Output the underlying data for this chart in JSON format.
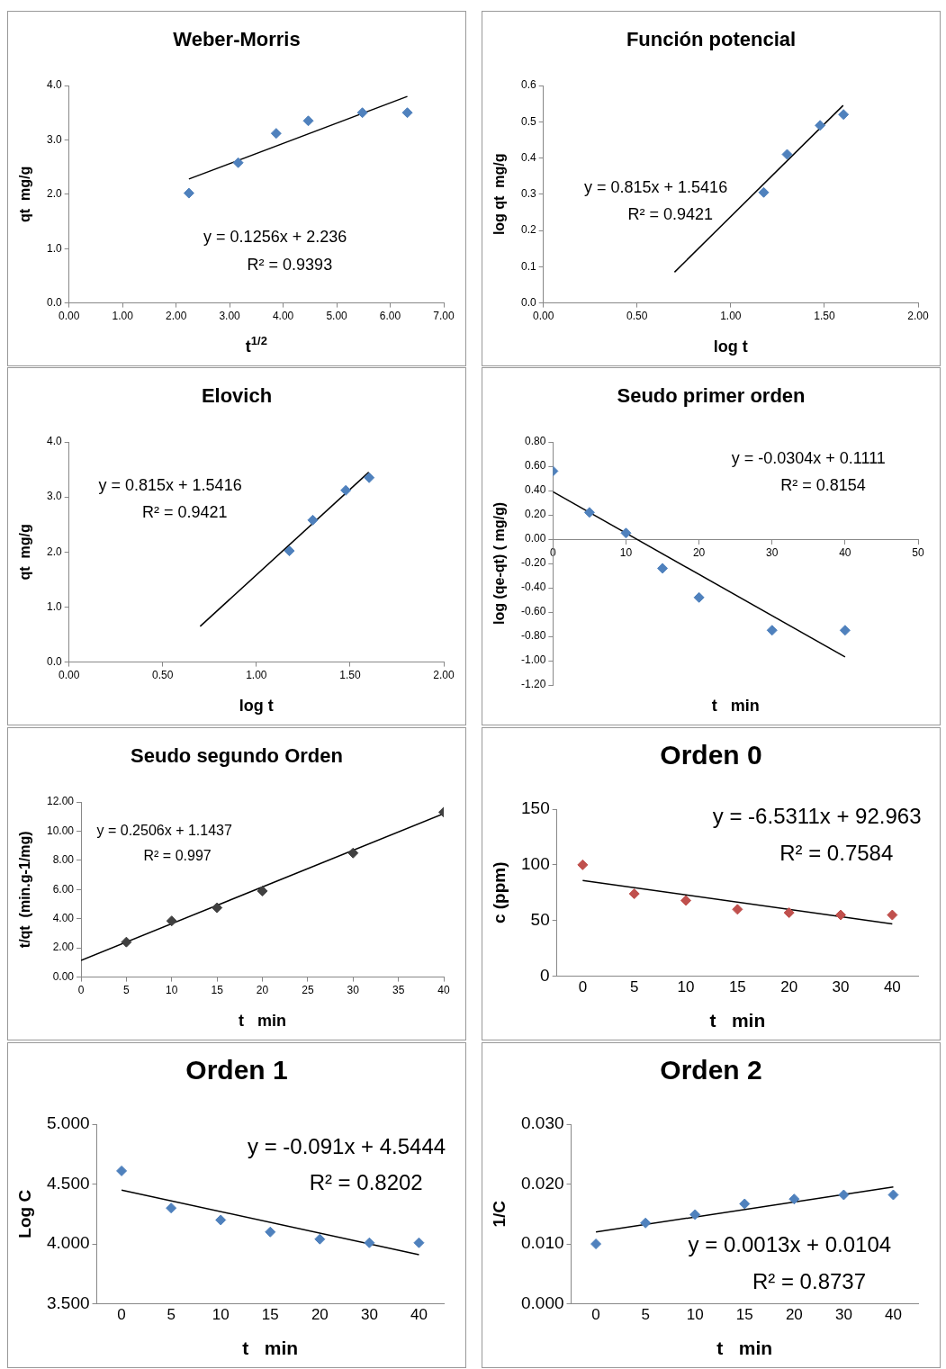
{
  "chart_data": [
    {
      "type": "scatter",
      "title": "Weber-Morris",
      "xlabel": "t$^{1/2}$",
      "ylabel": "qt  mg/g",
      "marker": "diamond",
      "xlim": [
        0,
        7
      ],
      "ylim": [
        0,
        4
      ],
      "xticks": [
        {
          "value": 0,
          "label": "0.00"
        },
        {
          "value": 1,
          "label": "1.00"
        },
        {
          "value": 2,
          "label": "2.00"
        },
        {
          "value": 3,
          "label": "3.00"
        },
        {
          "value": 4,
          "label": "4.00"
        },
        {
          "value": 5,
          "label": "5.00"
        },
        {
          "value": 6,
          "label": "6.00"
        },
        {
          "value": 7,
          "label": "7.00"
        }
      ],
      "yticks": [
        {
          "value": 0,
          "label": "0.0"
        },
        {
          "value": 1,
          "label": "1.0"
        },
        {
          "value": 2,
          "label": "2.0"
        },
        {
          "value": 3,
          "label": "3.0"
        },
        {
          "value": 4,
          "label": "4.0"
        }
      ],
      "annotations": [
        "y = 0.1256x + 2.236",
        "R² = 0.9393"
      ],
      "series": [
        {
          "color": "#4f81bd",
          "x": [
            2.24,
            3.16,
            3.87,
            4.47,
            5.48,
            6.32
          ],
          "values": [
            2.02,
            2.58,
            3.12,
            3.35,
            3.5,
            3.5
          ]
        },
        {
          "type": "line",
          "marker": "none",
          "color": "#000000",
          "x": [
            2.24,
            6.32
          ],
          "values": [
            2.28,
            3.8
          ]
        }
      ]
    },
    {
      "type": "scatter",
      "title": "Función potencial",
      "xlabel": "log t",
      "ylabel": "log qt  mg/g",
      "marker": "diamond",
      "xlim": [
        0,
        2
      ],
      "ylim": [
        0,
        0.6
      ],
      "xticks": [
        {
          "value": 0,
          "label": "0.00"
        },
        {
          "value": 0.5,
          "label": "0.50"
        },
        {
          "value": 1,
          "label": "1.00"
        },
        {
          "value": 1.5,
          "label": "1.50"
        },
        {
          "value": 2,
          "label": "2.00"
        }
      ],
      "yticks": [
        {
          "value": 0,
          "label": "0.0"
        },
        0.1,
        0.2,
        0.3,
        0.4,
        0.5,
        0.6
      ],
      "annotations": [
        "y = 0.815x + 1.5416",
        "R² = 0.9421"
      ],
      "series": [
        {
          "color": "#4f81bd",
          "x": [
            1.176,
            1.301,
            1.477,
            1.602
          ],
          "values": [
            0.305,
            0.41,
            0.49,
            0.52
          ]
        },
        {
          "type": "line",
          "marker": "none",
          "color": "#000000",
          "x": [
            0.7,
            1.6
          ],
          "values": [
            0.085,
            0.545
          ]
        }
      ]
    },
    {
      "type": "scatter",
      "title": "Elovich",
      "xlabel": "log t",
      "ylabel": "qt  mg/g",
      "marker": "diamond",
      "xlim": [
        0,
        2
      ],
      "ylim": [
        0,
        4
      ],
      "xticks": [
        {
          "value": 0,
          "label": "0.00"
        },
        {
          "value": 0.5,
          "label": "0.50"
        },
        {
          "value": 1,
          "label": "1.00"
        },
        {
          "value": 1.5,
          "label": "1.50"
        },
        {
          "value": 2,
          "label": "2.00"
        }
      ],
      "yticks": [
        {
          "value": 0,
          "label": "0.0"
        },
        {
          "value": 1,
          "label": "1.0"
        },
        {
          "value": 2,
          "label": "2.0"
        },
        {
          "value": 3,
          "label": "3.0"
        },
        {
          "value": 4,
          "label": "4.0"
        }
      ],
      "annotations": [
        "y = 0.815x + 1.5416",
        "R² = 0.9421"
      ],
      "series": [
        {
          "color": "#4f81bd",
          "x": [
            1.176,
            1.301,
            1.477,
            1.602
          ],
          "values": [
            2.02,
            2.58,
            3.12,
            3.35
          ]
        },
        {
          "type": "line",
          "marker": "none",
          "color": "#000000",
          "x": [
            0.7,
            1.6
          ],
          "values": [
            0.65,
            3.45
          ]
        }
      ]
    },
    {
      "type": "scatter",
      "title": "Seudo primer orden",
      "xlabel": "t   min",
      "ylabel": "log (qe-qt) ( mg/g)",
      "marker": "diamond",
      "xlim": [
        0,
        50
      ],
      "ylim": [
        -1.2,
        0.8
      ],
      "xticks": [
        0,
        10,
        20,
        30,
        40,
        50
      ],
      "yticks": [
        {
          "value": -1.2,
          "label": "-1.20"
        },
        {
          "value": -1,
          "label": "-1.00"
        },
        {
          "value": -0.8,
          "label": "-0.80"
        },
        {
          "value": -0.6,
          "label": "-0.60"
        },
        {
          "value": -0.4,
          "label": "-0.40"
        },
        {
          "value": -0.2,
          "label": "-0.20"
        },
        {
          "value": 0,
          "label": "0.00"
        },
        {
          "value": 0.2,
          "label": "0.20"
        },
        {
          "value": 0.4,
          "label": "0.40"
        },
        {
          "value": 0.6,
          "label": "0.60"
        },
        {
          "value": 0.8,
          "label": "0.80"
        }
      ],
      "annotations": [
        "y = -0.0304x + 0.1111",
        "R² = 0.8154"
      ],
      "series": [
        {
          "color": "#4f81bd",
          "x": [
            0,
            5,
            10,
            15,
            20,
            30,
            40
          ],
          "values": [
            0.56,
            0.22,
            0.05,
            -0.24,
            -0.48,
            -0.75,
            -0.75
          ]
        },
        {
          "type": "line",
          "marker": "none",
          "color": "#000000",
          "x": [
            0,
            40
          ],
          "values": [
            0.39,
            -0.97
          ]
        }
      ]
    },
    {
      "type": "scatter",
      "title": "Seudo segundo Orden",
      "xlabel": "t   min",
      "ylabel": "t/qt  (min.g-1/mg)",
      "marker": "diamond",
      "xlim": [
        0,
        40
      ],
      "ylim": [
        0,
        12
      ],
      "xticks": [
        0,
        5,
        10,
        15,
        20,
        25,
        30,
        35,
        40
      ],
      "yticks": [
        {
          "value": 0,
          "label": "0.00"
        },
        {
          "value": 2,
          "label": "2.00"
        },
        {
          "value": 4,
          "label": "4.00"
        },
        {
          "value": 6,
          "label": "6.00"
        },
        {
          "value": 8,
          "label": "8.00"
        },
        {
          "value": 10,
          "label": "10.00"
        },
        {
          "value": 12,
          "label": "12.00"
        }
      ],
      "annotations": [
        "y = 0.2506x + 1.1437",
        "R² = 0.997"
      ],
      "series": [
        {
          "color": "#404040",
          "x": [
            5,
            10,
            15,
            20,
            30,
            40
          ],
          "values": [
            2.4,
            3.85,
            4.75,
            5.9,
            8.5,
            11.3
          ]
        },
        {
          "type": "line",
          "marker": "none",
          "color": "#000000",
          "x": [
            0,
            40
          ],
          "values": [
            1.15,
            11.2
          ]
        }
      ]
    },
    {
      "type": "scatter",
      "title": "Orden 0",
      "xlabel": "t   min",
      "ylabel": "c (ppm)",
      "marker": "diamond",
      "categories": [
        "0",
        "5",
        "10",
        "15",
        "20",
        "30",
        "40"
      ],
      "ylim": [
        0,
        150
      ],
      "yticks": [
        0,
        50,
        100,
        150
      ],
      "annotations": [
        "y = -6.5311x + 92.963",
        "R² = 0.7584"
      ],
      "series": [
        {
          "color": "#c0504d",
          "values": [
            100,
            74,
            68,
            60,
            57,
            55,
            55
          ]
        },
        {
          "type": "line",
          "marker": "none",
          "color": "#000000",
          "values": [
            86,
            null,
            null,
            null,
            null,
            null,
            47
          ]
        }
      ]
    },
    {
      "type": "scatter",
      "title": "Orden 1",
      "xlabel": "t   min",
      "ylabel": "Log C",
      "marker": "diamond",
      "categories": [
        "0",
        "5",
        "10",
        "15",
        "20",
        "30",
        "40"
      ],
      "ylim": [
        3.5,
        5
      ],
      "yticks": [
        {
          "value": 3.5,
          "label": "3.500"
        },
        {
          "value": 4,
          "label": "4.000"
        },
        {
          "value": 4.5,
          "label": "4.500"
        },
        {
          "value": 5,
          "label": "5.000"
        }
      ],
      "annotations": [
        "y = -0.091x + 4.5444",
        "R² = 0.8202"
      ],
      "series": [
        {
          "color": "#4f81bd",
          "values": [
            4.61,
            4.3,
            4.2,
            4.1,
            4.04,
            4.01,
            4.01
          ]
        },
        {
          "type": "line",
          "marker": "none",
          "color": "#000000",
          "values": [
            4.45,
            null,
            null,
            null,
            null,
            null,
            3.91
          ]
        }
      ]
    },
    {
      "type": "scatter",
      "title": "Orden 2",
      "xlabel": "t   min",
      "ylabel": "1/C",
      "marker": "diamond",
      "categories": [
        "0",
        "5",
        "10",
        "15",
        "20",
        "30",
        "40"
      ],
      "ylim": [
        0,
        0.03
      ],
      "yticks": [
        {
          "value": 0,
          "label": "0.000"
        },
        {
          "value": 0.01,
          "label": "0.010"
        },
        {
          "value": 0.02,
          "label": "0.020"
        },
        {
          "value": 0.03,
          "label": "0.030"
        }
      ],
      "annotations": [
        "y = 0.0013x + 0.0104",
        "R² = 0.8737"
      ],
      "series": [
        {
          "color": "#4f81bd",
          "values": [
            0.01,
            0.0135,
            0.0149,
            0.0167,
            0.0175,
            0.0182,
            0.0182
          ]
        },
        {
          "type": "line",
          "marker": "none",
          "color": "#000000",
          "values": [
            0.012,
            null,
            null,
            null,
            null,
            null,
            0.0195
          ]
        }
      ]
    }
  ]
}
